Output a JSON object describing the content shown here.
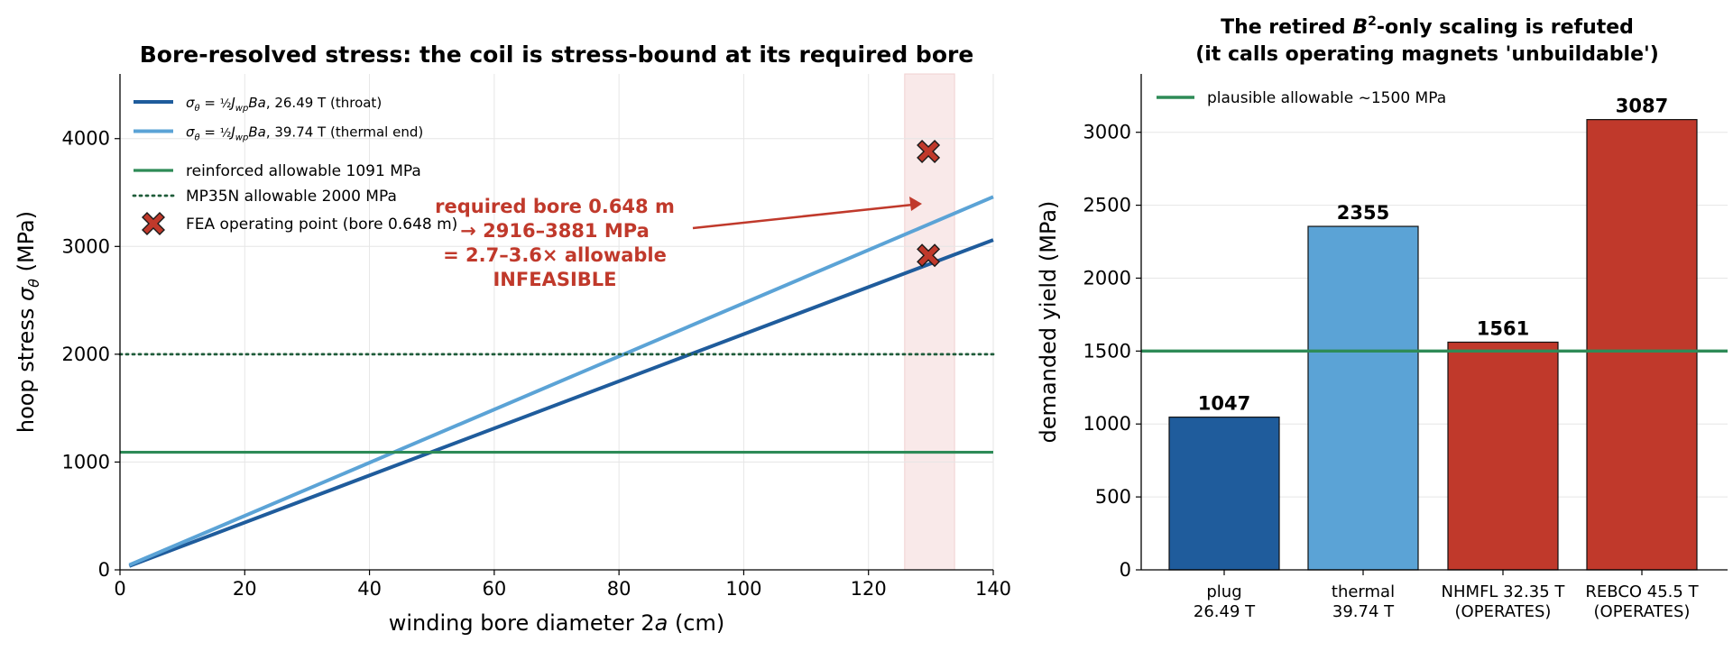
{
  "chart_data": [
    {
      "type": "line",
      "title": "Bore-resolved stress: the coil is stress-bound at its required bore",
      "xlabel": "winding bore diameter  2a  (cm)",
      "ylabel": "hoop stress  σθ  (MPa)",
      "xlim": [
        0,
        140
      ],
      "ylim": [
        0,
        4600
      ],
      "xticks": [
        0,
        20,
        40,
        60,
        80,
        100,
        120,
        140
      ],
      "yticks": [
        0,
        1000,
        2000,
        3000,
        4000
      ],
      "grid": true,
      "legend_position": "top-left",
      "shaded_region": {
        "x": [
          125.8,
          133.8
        ],
        "color": "#f9e9e9"
      },
      "series": [
        {
          "name": "σθ = ½ Jwp B a, 26.49 T (throat)",
          "kind": "line",
          "color": "#1f5c9c",
          "x": [
            1.5,
            140
          ],
          "y": [
            35,
            3060
          ]
        },
        {
          "name": "σθ = ½ Jwp B a, 39.74 T (thermal end)",
          "kind": "line",
          "color": "#5ba3d6",
          "x": [
            1.5,
            140
          ],
          "y": [
            45,
            3460
          ]
        },
        {
          "name": "reinforced allowable 1091 MPa",
          "kind": "hline",
          "color": "#2e8b57",
          "y": 1091
        },
        {
          "name": "MP35N allowable 2000 MPa",
          "kind": "hline-dotted",
          "color": "#1f5c3a",
          "y": 2000
        },
        {
          "name": "FEA operating point (bore 0.648 m)",
          "kind": "marker",
          "color": "#c0392b",
          "x": [
            129.6,
            129.6
          ],
          "y": [
            2916,
            3881
          ]
        }
      ],
      "annotation": {
        "lines": [
          "required bore 0.648 m",
          "→ 2916–3881 MPa",
          "= 2.7–3.6× allowable",
          "INFEASIBLE"
        ],
        "color": "#c0392b",
        "arrow_to": {
          "x": 129,
          "y": 3400
        }
      }
    },
    {
      "type": "bar",
      "title_lines": [
        "The retired B²-only scaling is refuted",
        "(it calls operating magnets 'unbuildable')"
      ],
      "ylabel": "demanded yield (MPa)",
      "ylim": [
        0,
        3400
      ],
      "yticks": [
        0,
        500,
        1000,
        1500,
        2000,
        2500,
        3000
      ],
      "grid": true,
      "legend_position": "top-left",
      "categories": [
        [
          "plug",
          "26.49 T"
        ],
        [
          "thermal",
          "39.74 T"
        ],
        [
          "NHMFL 32.35 T",
          "(OPERATES)"
        ],
        [
          "REBCO 45.5 T",
          "(OPERATES)"
        ]
      ],
      "values": [
        1047,
        2355,
        1561,
        3087
      ],
      "bar_colors": [
        "#1f5c9c",
        "#5ba3d6",
        "#c0392b",
        "#c0392b"
      ],
      "reference_line": {
        "name": "plausible allowable ~1500 MPa",
        "y": 1500,
        "color": "#2e8b57"
      }
    }
  ]
}
